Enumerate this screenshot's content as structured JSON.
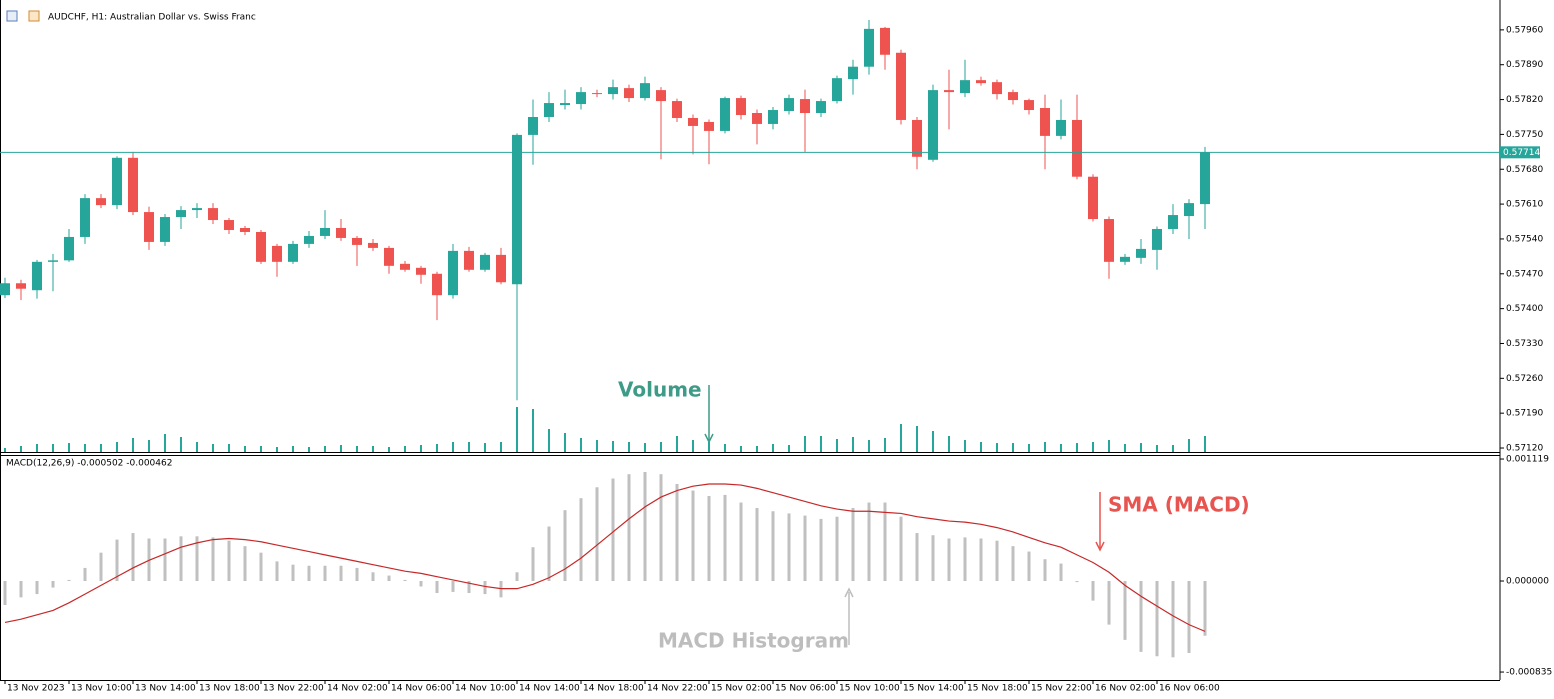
{
  "chart_data": [
    {
      "type": "candlestick",
      "title": "AUDCHF, H1:  Australian Dollar vs. Swiss Franc",
      "categories": [
        "13 Nov 2023",
        null,
        null,
        null,
        "13 Nov 10:00",
        null,
        null,
        null,
        "13 Nov 14:00",
        null,
        null,
        null,
        "13 Nov 18:00",
        null,
        null,
        null,
        "13 Nov 22:00",
        null,
        null,
        null,
        "14 Nov 02:00",
        null,
        null,
        null,
        "14 Nov 06:00",
        null,
        null,
        null,
        "14 Nov 10:00",
        null,
        null,
        null,
        "14 Nov 14:00",
        null,
        null,
        null,
        "14 Nov 18:00",
        null,
        null,
        null,
        "14 Nov 22:00",
        null,
        null,
        null,
        "15 Nov 02:00",
        null,
        null,
        null,
        "15 Nov 06:00",
        null,
        null,
        null,
        "15 Nov 10:00",
        null,
        null,
        null,
        "15 Nov 14:00",
        null,
        null,
        null,
        "15 Nov 18:00",
        null,
        null,
        null,
        "15 Nov 22:00",
        null,
        null,
        null,
        "16 Nov 02:00",
        null,
        null,
        null,
        "16 Nov 06:00",
        null,
        null,
        null
      ],
      "open": [
        0.57427,
        0.57451,
        0.57437,
        0.57494,
        0.57497,
        0.57544,
        0.57622,
        0.57608,
        0.57703,
        0.57594,
        0.57534,
        0.57584,
        0.57598,
        0.57602,
        0.57578,
        0.57562,
        0.57554,
        0.57526,
        0.57494,
        0.5753,
        0.57546,
        0.57562,
        0.57542,
        0.57532,
        0.57522,
        0.5749,
        0.57482,
        0.5747,
        0.57427,
        0.57516,
        0.57478,
        0.57508,
        0.57449,
        0.57749,
        0.57785,
        0.57809,
        0.57811,
        0.57833,
        0.57831,
        0.57843,
        0.57823,
        0.57839,
        0.57817,
        0.57783,
        0.57775,
        0.57757,
        0.57823,
        0.57793,
        0.57771,
        0.57797,
        0.57821,
        0.57793,
        0.57817,
        0.57861,
        0.57886,
        0.57964,
        0.57914,
        0.57779,
        0.57699,
        0.57839,
        0.57833,
        0.57859,
        0.57855,
        0.57835,
        0.57819,
        0.57803,
        0.57747,
        0.57779,
        0.57665,
        0.5758,
        0.57494,
        0.57502,
        0.57518,
        0.5756,
        0.57586,
        0.5761
      ],
      "high": [
        0.57462,
        0.57458,
        0.57498,
        0.5751,
        0.5756,
        0.5763,
        0.5763,
        0.57706,
        0.57715,
        0.57605,
        0.5759,
        0.57606,
        0.57612,
        0.57612,
        0.57582,
        0.57566,
        0.57558,
        0.5753,
        0.57536,
        0.57556,
        0.57598,
        0.5758,
        0.57546,
        0.5754,
        0.57526,
        0.57496,
        0.57486,
        0.57474,
        0.5753,
        0.57524,
        0.57512,
        0.57522,
        0.57752,
        0.5782,
        0.57835,
        0.5784,
        0.57845,
        0.5784,
        0.5786,
        0.5785,
        0.57866,
        0.57845,
        0.57822,
        0.5779,
        0.5778,
        0.57826,
        0.57828,
        0.578,
        0.57805,
        0.5783,
        0.5784,
        0.57822,
        0.57868,
        0.579,
        0.5798,
        0.57966,
        0.5792,
        0.57785,
        0.5785,
        0.5788,
        0.579,
        0.57866,
        0.5786,
        0.5784,
        0.57822,
        0.5783,
        0.5782,
        0.5783,
        0.5767,
        0.57585,
        0.5751,
        0.5754,
        0.57565,
        0.5761,
        0.5762,
        0.57725
      ],
      "low": [
        0.57421,
        0.57417,
        0.5742,
        0.57435,
        0.57494,
        0.5753,
        0.57602,
        0.576,
        0.57588,
        0.57518,
        0.57526,
        0.5756,
        0.57582,
        0.5757,
        0.5755,
        0.57548,
        0.5749,
        0.57464,
        0.5749,
        0.57522,
        0.5754,
        0.57536,
        0.57486,
        0.57516,
        0.5747,
        0.57474,
        0.5745,
        0.57377,
        0.5742,
        0.57474,
        0.57474,
        0.57449,
        0.57216,
        0.57689,
        0.57775,
        0.578,
        0.578,
        0.57825,
        0.5782,
        0.57815,
        0.57818,
        0.577,
        0.57775,
        0.5771,
        0.5769,
        0.57752,
        0.5778,
        0.5773,
        0.5776,
        0.5779,
        0.57715,
        0.57785,
        0.57812,
        0.5783,
        0.5787,
        0.5788,
        0.5777,
        0.5768,
        0.57695,
        0.5776,
        0.57825,
        0.57848,
        0.5782,
        0.5781,
        0.5779,
        0.5768,
        0.5774,
        0.5766,
        0.57575,
        0.5746,
        0.57488,
        0.5749,
        0.57478,
        0.5755,
        0.5754,
        0.5756
      ],
      "close": [
        0.57451,
        0.5744,
        0.57494,
        0.57497,
        0.57544,
        0.57622,
        0.57608,
        0.57703,
        0.57594,
        0.57534,
        0.57584,
        0.57598,
        0.57602,
        0.57578,
        0.57558,
        0.57554,
        0.57494,
        0.57494,
        0.5753,
        0.57546,
        0.57562,
        0.57542,
        0.57528,
        0.57522,
        0.57486,
        0.57478,
        0.57468,
        0.57427,
        0.57516,
        0.57478,
        0.57508,
        0.57453,
        0.57749,
        0.57785,
        0.57813,
        0.57813,
        0.57835,
        0.57831,
        0.57845,
        0.57823,
        0.57853,
        0.57817,
        0.57783,
        0.57767,
        0.57757,
        0.57823,
        0.57789,
        0.57771,
        0.57799,
        0.57823,
        0.57793,
        0.57817,
        0.57863,
        0.57886,
        0.57962,
        0.5791,
        0.57779,
        0.57705,
        0.57839,
        0.57835,
        0.57859,
        0.57853,
        0.57831,
        0.57819,
        0.57799,
        0.57747,
        0.57779,
        0.57665,
        0.5758,
        0.57494,
        0.57504,
        0.5752,
        0.5756,
        0.57588,
        0.57612,
        0.57714
      ],
      "volume": [
        4,
        6,
        8,
        8,
        9,
        8,
        8,
        10,
        14,
        12,
        18,
        15,
        10,
        8,
        8,
        6,
        6,
        5,
        6,
        5,
        6,
        7,
        6,
        6,
        5,
        6,
        7,
        8,
        10,
        10,
        9,
        10,
        45,
        43,
        23,
        19,
        14,
        12,
        11,
        10,
        9,
        10,
        16,
        12,
        10,
        8,
        6,
        6,
        8,
        7,
        16,
        16,
        13,
        15,
        12,
        14,
        28,
        26,
        21,
        16,
        12,
        10,
        9,
        9,
        8,
        10,
        8,
        9,
        10,
        12,
        8,
        9,
        7,
        7,
        13,
        16
      ],
      "up_color": "#26a69a",
      "down_color": "#ef5350",
      "volume_color": "#26a69a",
      "current_price": 0.57714,
      "ylim": [
        0.57112,
        0.5802
      ],
      "yticks": [
        {
          "value": 0.5796,
          "label": "0.57960"
        },
        {
          "value": 0.5789,
          "label": "0.57890"
        },
        {
          "value": 0.5782,
          "label": "0.57820"
        },
        {
          "value": 0.5775,
          "label": "0.57750"
        },
        {
          "value": 0.5768,
          "label": "0.57680"
        },
        {
          "value": 0.5761,
          "label": "0.57610"
        },
        {
          "value": 0.5754,
          "label": "0.57540"
        },
        {
          "value": 0.5747,
          "label": "0.57470"
        },
        {
          "value": 0.574,
          "label": "0.57400"
        },
        {
          "value": 0.5733,
          "label": "0.57330"
        },
        {
          "value": 0.5726,
          "label": "0.57260"
        },
        {
          "value": 0.5719,
          "label": "0.57190"
        },
        {
          "value": 0.5712,
          "label": "0.57120"
        }
      ],
      "annotations": [
        "Volume"
      ]
    },
    {
      "type": "macd",
      "title": "MACD(12,26,9) -0.000502 -0.000462",
      "histogram": [
        -0.00022,
        -0.00015,
        -0.00012,
        -6e-05,
        1e-05,
        0.00012,
        0.00026,
        0.00038,
        0.00044,
        0.00039,
        0.00039,
        0.00041,
        0.00041,
        0.0004,
        0.00037,
        0.00032,
        0.00026,
        0.00018,
        0.00015,
        0.00014,
        0.00014,
        0.00014,
        0.00012,
        8e-05,
        5e-05,
        1e-05,
        -5e-05,
        -0.00011,
        -0.0001,
        -0.00011,
        -0.00012,
        -0.00015,
        8e-05,
        0.00031,
        0.0005,
        0.00065,
        0.00076,
        0.00086,
        0.00094,
        0.00098,
        0.001,
        0.00098,
        0.00089,
        0.00083,
        0.00078,
        0.00079,
        0.00072,
        0.00067,
        0.00064,
        0.00062,
        0.0006,
        0.00057,
        0.00059,
        0.00067,
        0.00072,
        0.00072,
        0.00059,
        0.00044,
        0.00042,
        0.00039,
        0.0004,
        0.00039,
        0.00037,
        0.00032,
        0.00027,
        0.0002,
        0.00016,
        -1e-05,
        -0.00018,
        -0.0004,
        -0.00054,
        -0.00065,
        -0.00069,
        -0.0007,
        -0.00066,
        -0.000502
      ],
      "signal": [
        -0.00038,
        -0.00035,
        -0.00031,
        -0.00027,
        -0.0002,
        -0.00012,
        -4e-05,
        4e-05,
        0.00012,
        0.00019,
        0.00025,
        0.00031,
        0.00035,
        0.00038,
        0.00039,
        0.00038,
        0.00036,
        0.00033,
        0.0003,
        0.00027,
        0.00024,
        0.00021,
        0.00018,
        0.00015,
        0.00012,
        9e-05,
        7e-05,
        4e-05,
        1e-05,
        -2e-05,
        -5e-05,
        -7e-05,
        -7e-05,
        -3e-05,
        3e-05,
        0.00011,
        0.00021,
        0.00033,
        0.00045,
        0.00057,
        0.00068,
        0.00077,
        0.00083,
        0.00087,
        0.00089,
        0.00089,
        0.00088,
        0.00085,
        0.00081,
        0.00077,
        0.00073,
        0.00069,
        0.00066,
        0.00064,
        0.00064,
        0.00063,
        0.00062,
        0.00059,
        0.00057,
        0.00055,
        0.00054,
        0.00052,
        0.00049,
        0.00045,
        0.0004,
        0.00035,
        0.00031,
        0.00024,
        0.00017,
        8e-05,
        -4e-05,
        -0.00014,
        -0.00023,
        -0.00032,
        -0.0004,
        -0.000462
      ],
      "histogram_color": "#c0c0c0",
      "signal_color": "#c62828",
      "ylim": [
        -0.000908,
        0.001156
      ],
      "yticks": [
        0.001119,
        {
          "value": 0,
          "label": "0.000000"
        },
        -0.000835
      ],
      "annotations": [
        "SMA (MACD)",
        "MACD Histogram"
      ]
    }
  ]
}
